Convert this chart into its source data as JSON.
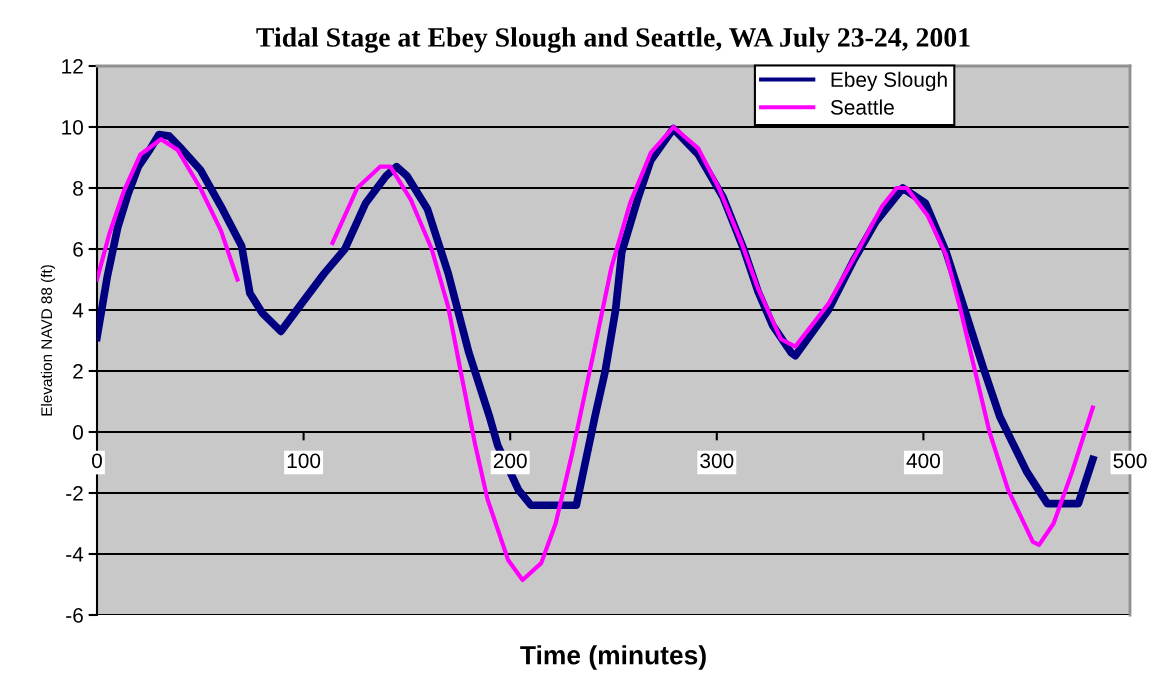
{
  "chart_data": {
    "type": "line",
    "title": "Tidal Stage at Ebey Slough and Seattle, WA July 23-24, 2001",
    "xlabel": "Time (minutes)",
    "ylabel": "Elevation NAVD 88 (ft)",
    "xlim": [
      0,
      500
    ],
    "xticks": [
      0,
      100,
      200,
      300,
      400,
      500
    ],
    "ylim": [
      -6,
      12
    ],
    "yticks": [
      -6,
      -4,
      -2,
      0,
      2,
      4,
      6,
      8,
      10,
      12
    ],
    "grid": "y",
    "legend": "top right",
    "line_style": "solid",
    "marker": "none",
    "series": [
      {
        "name": "Ebey Slough",
        "color": "#000080",
        "x": [
          0,
          5,
          10,
          15,
          20,
          25,
          30,
          35,
          40,
          50,
          60,
          70,
          74,
          80,
          89,
          100,
          110,
          120,
          130,
          140,
          145,
          150,
          160,
          170,
          180,
          190,
          194,
          204,
          210,
          232,
          241,
          246,
          251,
          254,
          262,
          268,
          279,
          291,
          303,
          313,
          320,
          327,
          336,
          338,
          354,
          366,
          377,
          390,
          401,
          411,
          420,
          429,
          437,
          450,
          460,
          475,
          482
        ],
        "values": [
          3.1,
          5.1,
          6.7,
          7.8,
          8.7,
          9.2,
          9.75,
          9.7,
          9.35,
          8.6,
          7.4,
          6.1,
          4.55,
          3.9,
          3.3,
          4.3,
          5.2,
          6.0,
          7.5,
          8.4,
          8.7,
          8.4,
          7.3,
          5.2,
          2.6,
          0.5,
          -0.45,
          -1.9,
          -2.4,
          -2.4,
          0.5,
          2.0,
          4.0,
          5.9,
          7.7,
          8.9,
          9.95,
          9.1,
          7.7,
          6.0,
          4.6,
          3.5,
          2.6,
          2.5,
          4.0,
          5.6,
          6.9,
          8.0,
          7.5,
          5.9,
          4.0,
          2.1,
          0.5,
          -1.3,
          -2.35,
          -2.35,
          -0.9
        ]
      },
      {
        "name": "Seattle",
        "color": "#ff00ff",
        "x": [
          0,
          6,
          13,
          21,
          31,
          39,
          50,
          60,
          68,
          90,
          114,
          126,
          137,
          142,
          152,
          162,
          170,
          176,
          183,
          189,
          199,
          206,
          215,
          222,
          230,
          241,
          249,
          258,
          268,
          279,
          291,
          301,
          312,
          320,
          331,
          338,
          354,
          368,
          380,
          387,
          392,
          402,
          411,
          418,
          425,
          432,
          441,
          453,
          456,
          463,
          472,
          482
        ],
        "values": [
          5.0,
          6.5,
          7.9,
          9.1,
          9.6,
          9.25,
          8.0,
          6.6,
          5.0,
          null,
          6.2,
          8.0,
          8.7,
          8.7,
          7.6,
          6.0,
          4.1,
          2.0,
          -0.4,
          -2.2,
          -4.2,
          -4.85,
          -4.3,
          -3.0,
          -0.7,
          2.8,
          5.4,
          7.5,
          9.15,
          10.0,
          9.3,
          8.0,
          6.2,
          4.7,
          3.05,
          2.8,
          4.2,
          5.9,
          7.4,
          8.0,
          8.0,
          7.1,
          5.8,
          4.0,
          2.0,
          0.0,
          -1.9,
          -3.6,
          -3.7,
          -3.0,
          -1.3,
          0.8
        ]
      }
    ]
  }
}
